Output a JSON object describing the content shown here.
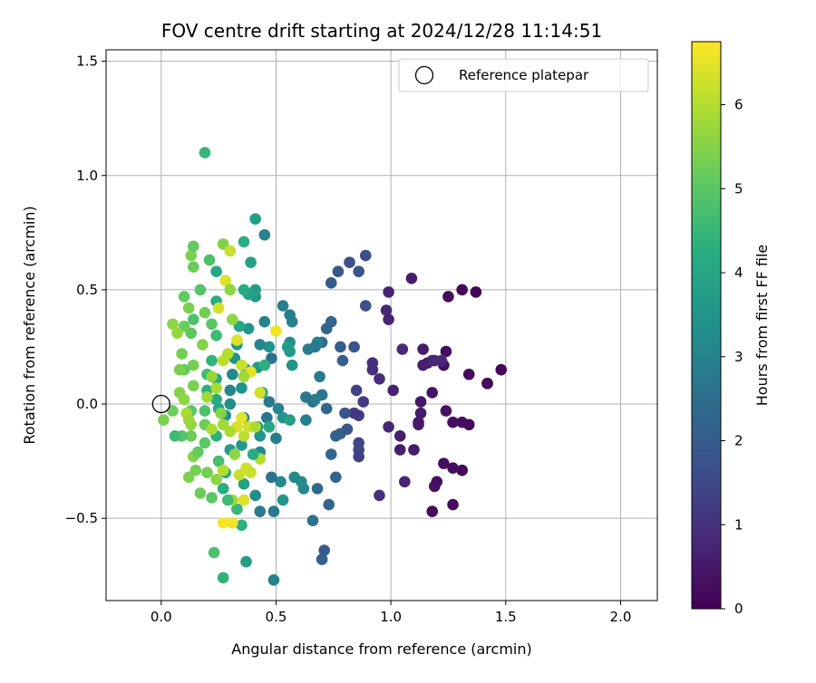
{
  "chart_data": {
    "type": "scatter",
    "title": "FOV centre drift starting at 2024/12/28 11:14:51",
    "xlabel": "Angular distance from reference (arcmin)",
    "ylabel": "Rotation from reference (arcmin)",
    "xlim": [
      -0.24,
      2.16
    ],
    "ylim": [
      -0.86,
      1.55
    ],
    "xticks": [
      0.0,
      0.5,
      1.0,
      1.5,
      2.0
    ],
    "xtick_labels": [
      "0.0",
      "0.5",
      "1.0",
      "1.5",
      "2.0"
    ],
    "yticks": [
      -0.5,
      0.0,
      0.5,
      1.0,
      1.5
    ],
    "ytick_labels": [
      "−0.5",
      "0.0",
      "0.5",
      "1.0",
      "1.5"
    ],
    "grid": true,
    "legend": {
      "placement": "top-right",
      "entries": [
        "Reference platepar"
      ]
    },
    "reference_point": {
      "x": 0.0,
      "y": 0.0,
      "marker": "open-circle"
    },
    "colorbar": {
      "label": "Hours from first FF file",
      "colormap": "viridis",
      "range": [
        0,
        6.75
      ],
      "ticks": [
        0,
        1,
        2,
        3,
        4,
        5,
        6
      ],
      "tick_labels": [
        "0",
        "1",
        "2",
        "3",
        "4",
        "5",
        "6"
      ]
    },
    "points": [
      [
        1.48,
        0.15,
        0.1
      ],
      [
        1.42,
        0.09,
        0.1
      ],
      [
        1.37,
        0.49,
        0.1
      ],
      [
        1.31,
        0.5,
        0.15
      ],
      [
        1.34,
        0.13,
        0.2
      ],
      [
        1.34,
        -0.09,
        0.15
      ],
      [
        1.31,
        -0.29,
        0.1
      ],
      [
        1.27,
        -0.44,
        0.2
      ],
      [
        1.27,
        -0.28,
        0.25
      ],
      [
        1.25,
        0.47,
        0.2
      ],
      [
        1.24,
        0.23,
        0.3
      ],
      [
        1.23,
        0.17,
        0.3
      ],
      [
        1.23,
        -0.26,
        0.2
      ],
      [
        1.24,
        -0.03,
        0.35
      ],
      [
        1.27,
        -0.08,
        0.3
      ],
      [
        1.31,
        -0.08,
        0.25
      ],
      [
        1.2,
        -0.34,
        0.3
      ],
      [
        1.19,
        -0.36,
        0.35
      ],
      [
        1.18,
        -0.47,
        0.25
      ],
      [
        1.18,
        0.05,
        0.4
      ],
      [
        1.16,
        0.18,
        0.45
      ],
      [
        1.14,
        0.24,
        0.5
      ],
      [
        1.13,
        0.01,
        0.45
      ],
      [
        1.13,
        -0.04,
        0.5
      ],
      [
        1.12,
        -0.09,
        0.55
      ],
      [
        1.12,
        -0.08,
        0.5
      ],
      [
        1.1,
        -0.2,
        0.55
      ],
      [
        1.09,
        0.55,
        0.6
      ],
      [
        1.04,
        -0.2,
        0.6
      ],
      [
        1.04,
        -0.14,
        0.65
      ],
      [
        1.01,
        0.06,
        0.7
      ],
      [
        0.99,
        0.49,
        0.7
      ],
      [
        0.99,
        0.37,
        0.75
      ],
      [
        0.98,
        0.41,
        0.8
      ],
      [
        0.99,
        -0.1,
        0.8
      ],
      [
        1.06,
        -0.34,
        0.75
      ],
      [
        1.05,
        0.24,
        0.85
      ],
      [
        0.95,
        0.11,
        0.9
      ],
      [
        0.92,
        0.15,
        0.95
      ],
      [
        0.92,
        0.18,
        0.95
      ],
      [
        0.95,
        -0.4,
        1.0
      ],
      [
        1.19,
        0.19,
        0.7
      ],
      [
        1.18,
        0.19,
        0.75
      ],
      [
        1.22,
        0.19,
        0.8
      ],
      [
        1.42,
        0.09,
        0.15
      ],
      [
        1.14,
        0.17,
        0.6
      ],
      [
        0.89,
        0.65,
        1.6
      ],
      [
        0.86,
        0.58,
        1.8
      ],
      [
        0.82,
        0.62,
        1.7
      ],
      [
        0.77,
        0.58,
        1.9
      ],
      [
        0.74,
        0.53,
        2.0
      ],
      [
        0.89,
        0.43,
        1.7
      ],
      [
        0.84,
        0.25,
        1.8
      ],
      [
        0.85,
        0.06,
        1.4
      ],
      [
        0.88,
        0.01,
        1.2
      ],
      [
        0.86,
        -0.05,
        1.3
      ],
      [
        0.84,
        -0.04,
        1.1
      ],
      [
        0.86,
        -0.2,
        1.4
      ],
      [
        0.86,
        -0.23,
        1.3
      ],
      [
        0.86,
        -0.17,
        1.5
      ],
      [
        0.8,
        -0.04,
        1.8
      ],
      [
        0.81,
        -0.11,
        1.9
      ],
      [
        0.78,
        -0.13,
        2.0
      ],
      [
        0.76,
        -0.14,
        2.1
      ],
      [
        0.76,
        -0.32,
        2.2
      ],
      [
        0.74,
        -0.22,
        2.3
      ],
      [
        0.78,
        0.25,
        2.0
      ],
      [
        0.79,
        0.19,
        2.1
      ],
      [
        0.74,
        0.36,
        2.2
      ],
      [
        0.72,
        0.33,
        2.2
      ],
      [
        0.7,
        -0.68,
        2.1
      ],
      [
        0.71,
        -0.64,
        2.0
      ],
      [
        0.73,
        -0.44,
        2.2
      ],
      [
        0.7,
        0.27,
        2.4
      ],
      [
        0.72,
        -0.02,
        2.3
      ],
      [
        0.68,
        -0.37,
        2.4
      ],
      [
        0.66,
        -0.51,
        2.6
      ],
      [
        0.66,
        0.01,
        2.5
      ],
      [
        0.7,
        0.04,
        2.6
      ],
      [
        0.69,
        0.12,
        2.8
      ],
      [
        0.68,
        0.27,
        3.0
      ],
      [
        0.67,
        0.25,
        2.7
      ],
      [
        0.64,
        0.24,
        2.8
      ],
      [
        0.67,
        0.02,
        2.9
      ],
      [
        0.63,
        0.03,
        2.7
      ],
      [
        0.63,
        -0.07,
        2.9
      ],
      [
        0.62,
        -0.37,
        3.1
      ],
      [
        0.61,
        -0.34,
        3.3
      ],
      [
        0.58,
        -0.32,
        3.2
      ],
      [
        0.57,
        0.36,
        3.0
      ],
      [
        0.56,
        0.39,
        2.9
      ],
      [
        0.53,
        0.43,
        2.9
      ],
      [
        0.56,
        0.27,
        3.3
      ],
      [
        0.56,
        0.23,
        3.6
      ],
      [
        0.57,
        0.17,
        3.5
      ],
      [
        0.55,
        0.25,
        3.7
      ],
      [
        0.53,
        -0.06,
        3.4
      ],
      [
        0.51,
        -0.02,
        3.1
      ],
      [
        0.5,
        -0.15,
        2.9
      ],
      [
        0.52,
        -0.34,
        3.2
      ],
      [
        0.53,
        -0.42,
        3.5
      ],
      [
        0.49,
        -0.47,
        2.8
      ],
      [
        0.49,
        -0.77,
        3.0
      ],
      [
        0.48,
        -0.32,
        2.6
      ],
      [
        0.46,
        -0.06,
        2.7
      ],
      [
        0.47,
        0.01,
        2.8
      ],
      [
        0.48,
        0.2,
        2.6
      ],
      [
        0.47,
        0.25,
        3.4
      ],
      [
        0.45,
        0.36,
        3.0
      ],
      [
        0.43,
        0.26,
        3.1
      ],
      [
        0.42,
        0.16,
        3.6
      ],
      [
        0.44,
        0.05,
        3.8
      ],
      [
        0.42,
        -0.1,
        3.6
      ],
      [
        0.43,
        -0.14,
        3.5
      ],
      [
        0.43,
        -0.21,
        3.1
      ],
      [
        0.43,
        -0.47,
        2.8
      ],
      [
        0.41,
        -0.4,
        3.3
      ],
      [
        0.41,
        0.47,
        3.6
      ],
      [
        0.41,
        0.81,
        3.8
      ],
      [
        0.45,
        0.74,
        3.0
      ],
      [
        0.41,
        0.5,
        3.7
      ],
      [
        0.38,
        0.48,
        3.9
      ],
      [
        0.36,
        0.71,
        4.2
      ],
      [
        0.36,
        0.5,
        4.1
      ],
      [
        0.39,
        0.62,
        3.9
      ],
      [
        0.38,
        0.33,
        3.5
      ],
      [
        0.37,
        0.15,
        3.2
      ],
      [
        0.35,
        0.07,
        3.4
      ],
      [
        0.36,
        -0.06,
        3.3
      ],
      [
        0.35,
        -0.18,
        3.6
      ],
      [
        0.36,
        -0.35,
        3.9
      ],
      [
        0.37,
        -0.69,
        3.8
      ],
      [
        0.35,
        -0.53,
        4.3
      ],
      [
        0.33,
        -0.46,
        4.5
      ],
      [
        0.34,
        0.34,
        4.0
      ],
      [
        0.33,
        0.26,
        3.6
      ],
      [
        0.32,
        0.2,
        3.4
      ],
      [
        0.31,
        0.13,
        3.2
      ],
      [
        0.3,
        0.06,
        3.1
      ],
      [
        0.3,
        0.0,
        3.3
      ],
      [
        0.28,
        -0.05,
        3.5
      ],
      [
        0.3,
        -0.2,
        3.7
      ],
      [
        0.28,
        -0.3,
        4.0
      ],
      [
        0.27,
        -0.37,
        4.2
      ],
      [
        0.27,
        -0.76,
        4.4
      ],
      [
        0.23,
        -0.65,
        4.8
      ],
      [
        0.22,
        -0.41,
        5.0
      ],
      [
        0.25,
        -0.25,
        4.7
      ],
      [
        0.24,
        -0.14,
        4.3
      ],
      [
        0.25,
        -0.02,
        3.9
      ],
      [
        0.24,
        0.02,
        4.1
      ],
      [
        0.24,
        0.11,
        4.0
      ],
      [
        0.22,
        0.19,
        4.4
      ],
      [
        0.24,
        0.3,
        4.6
      ],
      [
        0.24,
        0.45,
        4.2
      ],
      [
        0.24,
        0.58,
        4.0
      ],
      [
        0.21,
        0.63,
        4.8
      ],
      [
        0.22,
        0.35,
        5.0
      ],
      [
        0.2,
        0.13,
        4.6
      ],
      [
        0.2,
        0.06,
        4.3
      ],
      [
        0.19,
        -0.03,
        4.8
      ],
      [
        0.19,
        -0.09,
        5.2
      ],
      [
        0.19,
        -0.17,
        5.0
      ],
      [
        0.17,
        -0.39,
        5.2
      ],
      [
        0.15,
        -0.29,
        5.3
      ],
      [
        0.14,
        -0.23,
        5.5
      ],
      [
        0.13,
        -0.14,
        5.2
      ],
      [
        0.13,
        -0.03,
        5.0
      ],
      [
        0.14,
        0.08,
        5.4
      ],
      [
        0.14,
        0.17,
        5.3
      ],
      [
        0.13,
        0.31,
        5.0
      ],
      [
        0.14,
        0.37,
        4.8
      ],
      [
        0.14,
        0.6,
        5.2
      ],
      [
        0.13,
        0.65,
        5.4
      ],
      [
        0.14,
        0.69,
        5.1
      ],
      [
        0.19,
        1.1,
        4.5
      ],
      [
        0.27,
        0.7,
        5.5
      ],
      [
        0.3,
        0.67,
        6.2
      ],
      [
        0.28,
        0.54,
        6.4
      ],
      [
        0.25,
        0.42,
        6.3
      ],
      [
        0.3,
        0.5,
        5.6
      ],
      [
        0.17,
        0.5,
        4.9
      ],
      [
        0.1,
        0.47,
        5.1
      ],
      [
        0.12,
        0.42,
        5.4
      ],
      [
        0.1,
        0.34,
        5.2
      ],
      [
        0.05,
        0.35,
        5.6
      ],
      [
        0.07,
        0.31,
        5.7
      ],
      [
        0.09,
        0.22,
        5.3
      ],
      [
        0.1,
        0.15,
        5.1
      ],
      [
        0.08,
        0.15,
        5.4
      ],
      [
        0.08,
        0.05,
        5.5
      ],
      [
        0.1,
        0.02,
        5.6
      ],
      [
        0.11,
        -0.04,
        5.9
      ],
      [
        0.12,
        -0.07,
        5.8
      ],
      [
        0.13,
        -0.09,
        5.7
      ],
      [
        0.09,
        -0.14,
        4.9
      ],
      [
        0.06,
        -0.14,
        4.6
      ],
      [
        0.01,
        -0.07,
        5.4
      ],
      [
        0.05,
        -0.03,
        5.2
      ],
      [
        0.12,
        -0.32,
        5.4
      ],
      [
        0.24,
        -0.33,
        5.6
      ],
      [
        0.27,
        -0.29,
        6.0
      ],
      [
        0.34,
        -0.31,
        6.2
      ],
      [
        0.36,
        -0.42,
        6.4
      ],
      [
        0.37,
        -0.28,
        6.3
      ],
      [
        0.39,
        -0.3,
        6.2
      ],
      [
        0.36,
        -0.14,
        6.1
      ],
      [
        0.38,
        -0.1,
        6.3
      ],
      [
        0.35,
        -0.06,
        6.5
      ],
      [
        0.33,
        -0.1,
        6.4
      ],
      [
        0.3,
        -0.12,
        5.9
      ],
      [
        0.27,
        -0.09,
        5.8
      ],
      [
        0.26,
        -0.04,
        5.5
      ],
      [
        0.24,
        0.07,
        5.9
      ],
      [
        0.22,
        0.12,
        5.7
      ],
      [
        0.27,
        0.19,
        6.1
      ],
      [
        0.29,
        0.22,
        6.0
      ],
      [
        0.33,
        0.28,
        6.4
      ],
      [
        0.31,
        0.37,
        5.6
      ],
      [
        0.35,
        0.17,
        6.2
      ],
      [
        0.39,
        0.14,
        6.5
      ],
      [
        0.43,
        0.05,
        6.3
      ],
      [
        0.43,
        -0.24,
        6.0
      ],
      [
        0.31,
        -0.52,
        6.6
      ],
      [
        0.27,
        -0.52,
        6.7
      ],
      [
        0.31,
        -0.42,
        5.8
      ],
      [
        0.5,
        0.32,
        6.6
      ],
      [
        0.36,
        0.12,
        5.8
      ],
      [
        0.41,
        -0.1,
        5.9
      ],
      [
        0.22,
        -0.11,
        5.9
      ],
      [
        0.2,
        -0.3,
        5.3
      ],
      [
        0.16,
        -0.21,
        5.1
      ],
      [
        0.2,
        0.03,
        5.8
      ],
      [
        0.18,
        0.26,
        5.5
      ],
      [
        0.19,
        0.4,
        5.3
      ],
      [
        0.32,
        -0.22,
        5.6
      ],
      [
        0.29,
        -0.42,
        4.6
      ],
      [
        0.4,
        -0.22,
        4.2
      ],
      [
        0.45,
        0.17,
        4.3
      ],
      [
        0.56,
        -0.07,
        3.8
      ],
      [
        0.47,
        -0.1,
        4.0
      ]
    ]
  }
}
